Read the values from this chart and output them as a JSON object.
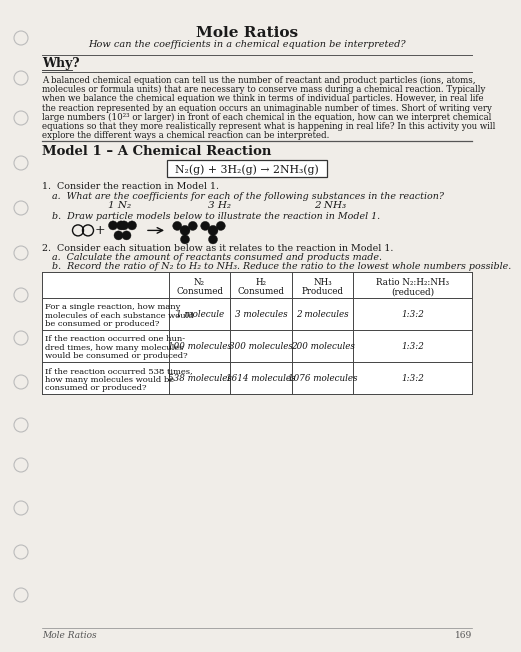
{
  "title": "Mole Ratios",
  "subtitle": "How can the coefficients in a chemical equation be interpreted?",
  "why_title": "Why?",
  "why_lines": [
    "A balanced chemical equation can tell us the number of reactant and product particles (ions, atoms,",
    "molecules or formula units) that are necessary to conserve mass during a chemical reaction. Typically",
    "when we balance the chemical equation we think in terms of individual particles. However, in real life",
    "the reaction represented by an equation occurs an unimaginable number of times. Short of writing very",
    "large numbers (10²³ or larger) in front of each chemical in the equation, how can we interpret chemical",
    "equations so that they more realistically represent what is happening in real life? In this activity you will",
    "explore the different ways a chemical reaction can be interpreted."
  ],
  "model_title": "Model 1 – A Chemical Reaction",
  "equation": "N₂(g) + 3H₂(g) → 2NH₃(g)",
  "q1_text": "1.  Consider the reaction in Model 1.",
  "q1a_text": "a.  What are the coefficients for each of the following substances in the reaction?",
  "q1a_answers": [
    "1 N₂",
    "3 H₂",
    "2 NH₃"
  ],
  "q1b_text": "b.  Draw particle models below to illustrate the reaction in Model 1.",
  "q2_text": "2.  Consider each situation below as it relates to the reaction in Model 1.",
  "q2a_text": "a.  Calculate the amount of reactants consumed and products made.",
  "q2b_text": "b.  Record the ratio of N₂ to H₂ to NH₃. Reduce the ratio to the lowest whole numbers possible.",
  "table_col0_header": "",
  "table_col_headers": [
    "N₂\nConsumed",
    "H₂\nConsumed",
    "NH₃\nProduced",
    "Ratio N₂:H₂:NH₃\n(reduced)"
  ],
  "table_rows": [
    [
      "For a single reaction, how many\nmolecules of each substance would\nbe consumed or produced?",
      "1 molecule",
      "3 molecules",
      "2 molecules",
      "1:3:2"
    ],
    [
      "If the reaction occurred one hun-\ndred times, how many molecules\nwould be consumed or produced?",
      "100 molecules",
      "300 molecules",
      "200 molecules",
      "1:3:2"
    ],
    [
      "If the reaction occurred 538 times,\nhow many molecules would be\nconsumed or produced?",
      "538 molecules",
      "1614 molecules",
      "1076 molecules",
      "1:3:2"
    ]
  ],
  "footer": "Mole Ratios",
  "page_num": "169",
  "bg_color": "#f0ede8",
  "text_color": "#1a1a1a",
  "line_color": "#444444",
  "hole_color": "#d8d5d0"
}
